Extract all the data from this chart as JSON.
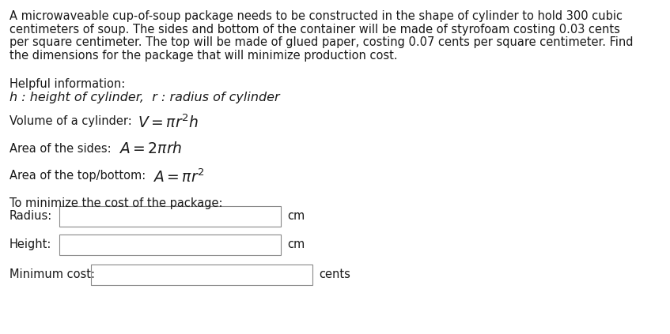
{
  "bg_color": "#ffffff",
  "text_color": "#1a1a1a",
  "para_lines": [
    "A microwaveable cup-of-soup package needs to be constructed in the shape of cylinder to hold 300 cubic",
    "centimeters of soup. The sides and bottom of the container will be made of styrofoam costing 0.03 cents",
    "per square centimeter. The top will be made of glued paper, costing 0.07 cents per square centimeter. Find",
    "the dimensions for the package that will minimize production cost."
  ],
  "helpful_label": "Helpful information:",
  "italic_line": "h : height of cylinder,  r : radius of cylinder",
  "vol_prefix": "Volume of a cylinder: ",
  "vol_math": "$V = \\pi r^2 h$",
  "sides_prefix": "Area of the sides: ",
  "sides_math": "$A = 2\\pi r h$",
  "topbot_prefix": "Area of the top/bottom: ",
  "topbot_math": "$A = \\pi r^2$",
  "minimize_label": "To minimize the cost of the package:",
  "radius_label": "Radius:",
  "height_label": "Height:",
  "mincost_label": "Minimum cost:",
  "cm_label": "cm",
  "cents_label": "cents",
  "font_size_main": 10.5,
  "font_size_math": 13.5,
  "font_size_italic": 11.5
}
